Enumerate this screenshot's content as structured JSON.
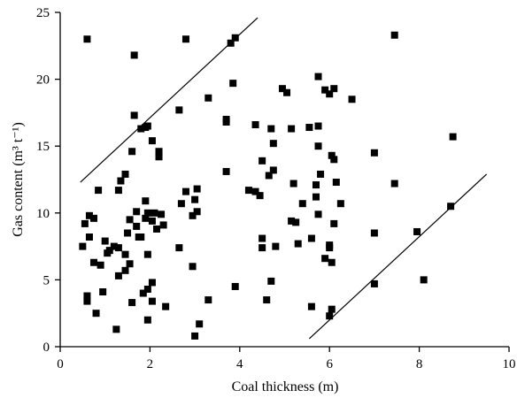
{
  "chart_data": {
    "type": "scatter",
    "title": "",
    "xlabel": "Coal thickness (m)",
    "ylabel": "Gas content (m³ t⁻¹)",
    "xlim": [
      0,
      10
    ],
    "ylim": [
      0,
      25
    ],
    "x_ticks": [
      "0",
      "2",
      "4",
      "6",
      "8",
      "10"
    ],
    "y_ticks": [
      "0",
      "5",
      "10",
      "15",
      "20",
      "25"
    ],
    "grid": false,
    "legend": "none",
    "marker_color": "#000000",
    "points": [
      [
        0.6,
        23.0
      ],
      [
        1.65,
        21.8
      ],
      [
        2.8,
        23.0
      ],
      [
        3.8,
        22.7
      ],
      [
        3.9,
        23.1
      ],
      [
        3.3,
        18.6
      ],
      [
        3.85,
        19.7
      ],
      [
        2.65,
        17.7
      ],
      [
        1.65,
        17.3
      ],
      [
        1.8,
        16.3
      ],
      [
        1.9,
        16.4
      ],
      [
        1.95,
        16.5
      ],
      [
        2.05,
        15.4
      ],
      [
        1.6,
        14.6
      ],
      [
        2.2,
        14.6
      ],
      [
        2.2,
        14.2
      ],
      [
        1.45,
        12.9
      ],
      [
        1.35,
        12.4
      ],
      [
        1.3,
        11.7
      ],
      [
        0.85,
        11.7
      ],
      [
        1.9,
        10.9
      ],
      [
        2.25,
        9.9
      ],
      [
        1.7,
        10.1
      ],
      [
        1.95,
        10.0
      ],
      [
        2.1,
        10.0
      ],
      [
        1.55,
        9.5
      ],
      [
        0.65,
        9.8
      ],
      [
        0.75,
        9.6
      ],
      [
        1.9,
        9.6
      ],
      [
        2.05,
        9.4
      ],
      [
        2.3,
        9.1
      ],
      [
        1.7,
        9.0
      ],
      [
        2.15,
        8.8
      ],
      [
        0.55,
        9.2
      ],
      [
        0.65,
        8.2
      ],
      [
        1.0,
        7.9
      ],
      [
        1.2,
        7.5
      ],
      [
        1.5,
        8.5
      ],
      [
        1.75,
        8.2
      ],
      [
        1.8,
        8.2
      ],
      [
        1.05,
        7.0
      ],
      [
        1.1,
        7.2
      ],
      [
        1.3,
        7.4
      ],
      [
        1.45,
        6.9
      ],
      [
        1.95,
        6.9
      ],
      [
        0.5,
        7.5
      ],
      [
        0.75,
        6.3
      ],
      [
        0.9,
        6.1
      ],
      [
        1.55,
        6.2
      ],
      [
        1.3,
        5.3
      ],
      [
        1.45,
        5.7
      ],
      [
        2.05,
        4.8
      ],
      [
        0.95,
        4.1
      ],
      [
        1.85,
        4.0
      ],
      [
        1.95,
        4.3
      ],
      [
        0.6,
        3.8
      ],
      [
        0.6,
        3.4
      ],
      [
        1.6,
        3.3
      ],
      [
        2.05,
        3.4
      ],
      [
        2.35,
        3.0
      ],
      [
        0.8,
        2.5
      ],
      [
        1.95,
        2.0
      ],
      [
        1.25,
        1.3
      ],
      [
        2.7,
        10.7
      ],
      [
        2.8,
        11.6
      ],
      [
        3.0,
        11.0
      ],
      [
        3.05,
        11.8
      ],
      [
        2.95,
        9.8
      ],
      [
        3.05,
        10.1
      ],
      [
        2.65,
        7.4
      ],
      [
        2.95,
        6.0
      ],
      [
        3.3,
        3.5
      ],
      [
        3.1,
        1.7
      ],
      [
        3.0,
        0.8
      ],
      [
        3.9,
        4.5
      ],
      [
        4.2,
        11.7
      ],
      [
        4.35,
        11.6
      ],
      [
        4.45,
        11.3
      ],
      [
        4.5,
        13.9
      ],
      [
        4.35,
        16.6
      ],
      [
        4.7,
        16.3
      ],
      [
        4.75,
        15.2
      ],
      [
        4.65,
        12.8
      ],
      [
        4.75,
        13.2
      ],
      [
        3.7,
        17.0
      ],
      [
        3.7,
        16.8
      ],
      [
        3.7,
        13.1
      ],
      [
        4.95,
        19.3
      ],
      [
        5.05,
        19.0
      ],
      [
        5.15,
        16.3
      ],
      [
        5.55,
        16.4
      ],
      [
        5.75,
        16.5
      ],
      [
        5.75,
        15.0
      ],
      [
        5.8,
        12.9
      ],
      [
        5.7,
        12.1
      ],
      [
        5.7,
        11.2
      ],
      [
        5.2,
        12.2
      ],
      [
        5.15,
        9.4
      ],
      [
        5.25,
        9.3
      ],
      [
        5.4,
        10.7
      ],
      [
        4.5,
        8.1
      ],
      [
        4.5,
        7.4
      ],
      [
        4.8,
        7.5
      ],
      [
        5.3,
        7.7
      ],
      [
        5.6,
        8.1
      ],
      [
        5.75,
        9.9
      ],
      [
        5.9,
        6.6
      ],
      [
        6.0,
        7.4
      ],
      [
        6.0,
        7.6
      ],
      [
        6.05,
        6.3
      ],
      [
        6.1,
        9.2
      ],
      [
        6.25,
        10.7
      ],
      [
        6.15,
        12.3
      ],
      [
        6.05,
        14.3
      ],
      [
        6.1,
        14.0
      ],
      [
        6.5,
        18.5
      ],
      [
        5.75,
        20.2
      ],
      [
        5.9,
        19.2
      ],
      [
        6.0,
        18.9
      ],
      [
        6.1,
        19.3
      ],
      [
        4.7,
        4.9
      ],
      [
        4.6,
        3.5
      ],
      [
        5.6,
        3.0
      ],
      [
        6.0,
        2.3
      ],
      [
        6.05,
        2.8
      ],
      [
        7.0,
        14.5
      ],
      [
        7.0,
        8.5
      ],
      [
        7.0,
        4.7
      ],
      [
        7.45,
        23.3
      ],
      [
        7.45,
        12.2
      ],
      [
        7.95,
        8.6
      ],
      [
        8.1,
        5.0
      ],
      [
        8.7,
        10.5
      ],
      [
        8.75,
        15.7
      ]
    ],
    "lines": [
      {
        "from": [
          0.45,
          12.3
        ],
        "to": [
          4.4,
          24.6
        ]
      },
      {
        "from": [
          5.55,
          0.6
        ],
        "to": [
          9.5,
          12.9
        ]
      }
    ]
  }
}
